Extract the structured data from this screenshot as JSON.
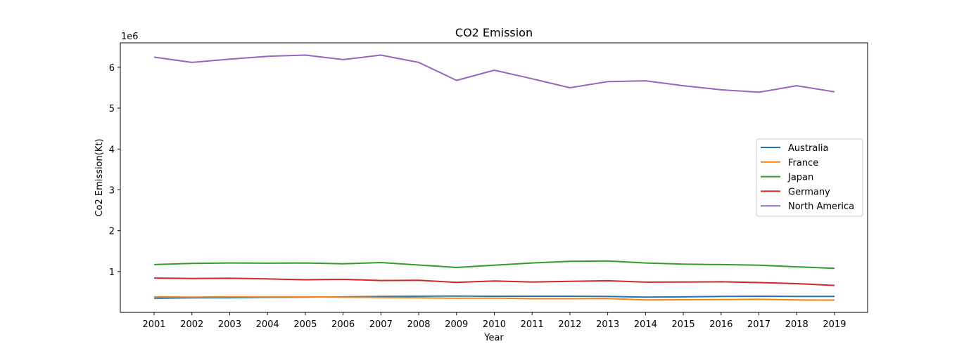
{
  "chart_data": {
    "type": "line",
    "title": "CO2 Emission",
    "xlabel": "Year",
    "ylabel": "Co2 Emission(Kt)",
    "y_scale_label": "1e6",
    "x": [
      2001,
      2002,
      2003,
      2004,
      2005,
      2006,
      2007,
      2008,
      2009,
      2010,
      2011,
      2012,
      2013,
      2014,
      2015,
      2016,
      2017,
      2018,
      2019
    ],
    "y_ticks": [
      1,
      2,
      3,
      4,
      5,
      6
    ],
    "ylim": [
      0.0,
      6.6
    ],
    "y_units_multiplier": 1000000,
    "grid": false,
    "legend_position": "center-right",
    "series": [
      {
        "name": "Australia",
        "color": "#1f77b4",
        "values": [
          0.345,
          0.355,
          0.36,
          0.37,
          0.375,
          0.38,
          0.39,
          0.395,
          0.4,
          0.395,
          0.395,
          0.395,
          0.39,
          0.375,
          0.38,
          0.39,
          0.395,
          0.39,
          0.39
        ]
      },
      {
        "name": "France",
        "color": "#ff7f0e",
        "values": [
          0.38,
          0.375,
          0.38,
          0.38,
          0.38,
          0.375,
          0.365,
          0.36,
          0.345,
          0.35,
          0.335,
          0.335,
          0.34,
          0.305,
          0.31,
          0.315,
          0.32,
          0.305,
          0.3
        ]
      },
      {
        "name": "Japan",
        "color": "#2ca02c",
        "values": [
          1.17,
          1.2,
          1.21,
          1.205,
          1.21,
          1.19,
          1.22,
          1.16,
          1.1,
          1.155,
          1.21,
          1.25,
          1.26,
          1.21,
          1.18,
          1.17,
          1.155,
          1.115,
          1.08
        ]
      },
      {
        "name": "Germany",
        "color": "#d62728",
        "values": [
          0.84,
          0.83,
          0.835,
          0.82,
          0.8,
          0.81,
          0.78,
          0.785,
          0.735,
          0.77,
          0.745,
          0.76,
          0.775,
          0.74,
          0.745,
          0.75,
          0.73,
          0.705,
          0.66
        ]
      },
      {
        "name": "North America",
        "color": "#9467bd",
        "values": [
          6.25,
          6.12,
          6.2,
          6.27,
          6.3,
          6.19,
          6.3,
          6.12,
          5.68,
          5.93,
          5.72,
          5.5,
          5.65,
          5.67,
          5.55,
          5.45,
          5.39,
          5.55,
          5.4
        ]
      }
    ]
  }
}
